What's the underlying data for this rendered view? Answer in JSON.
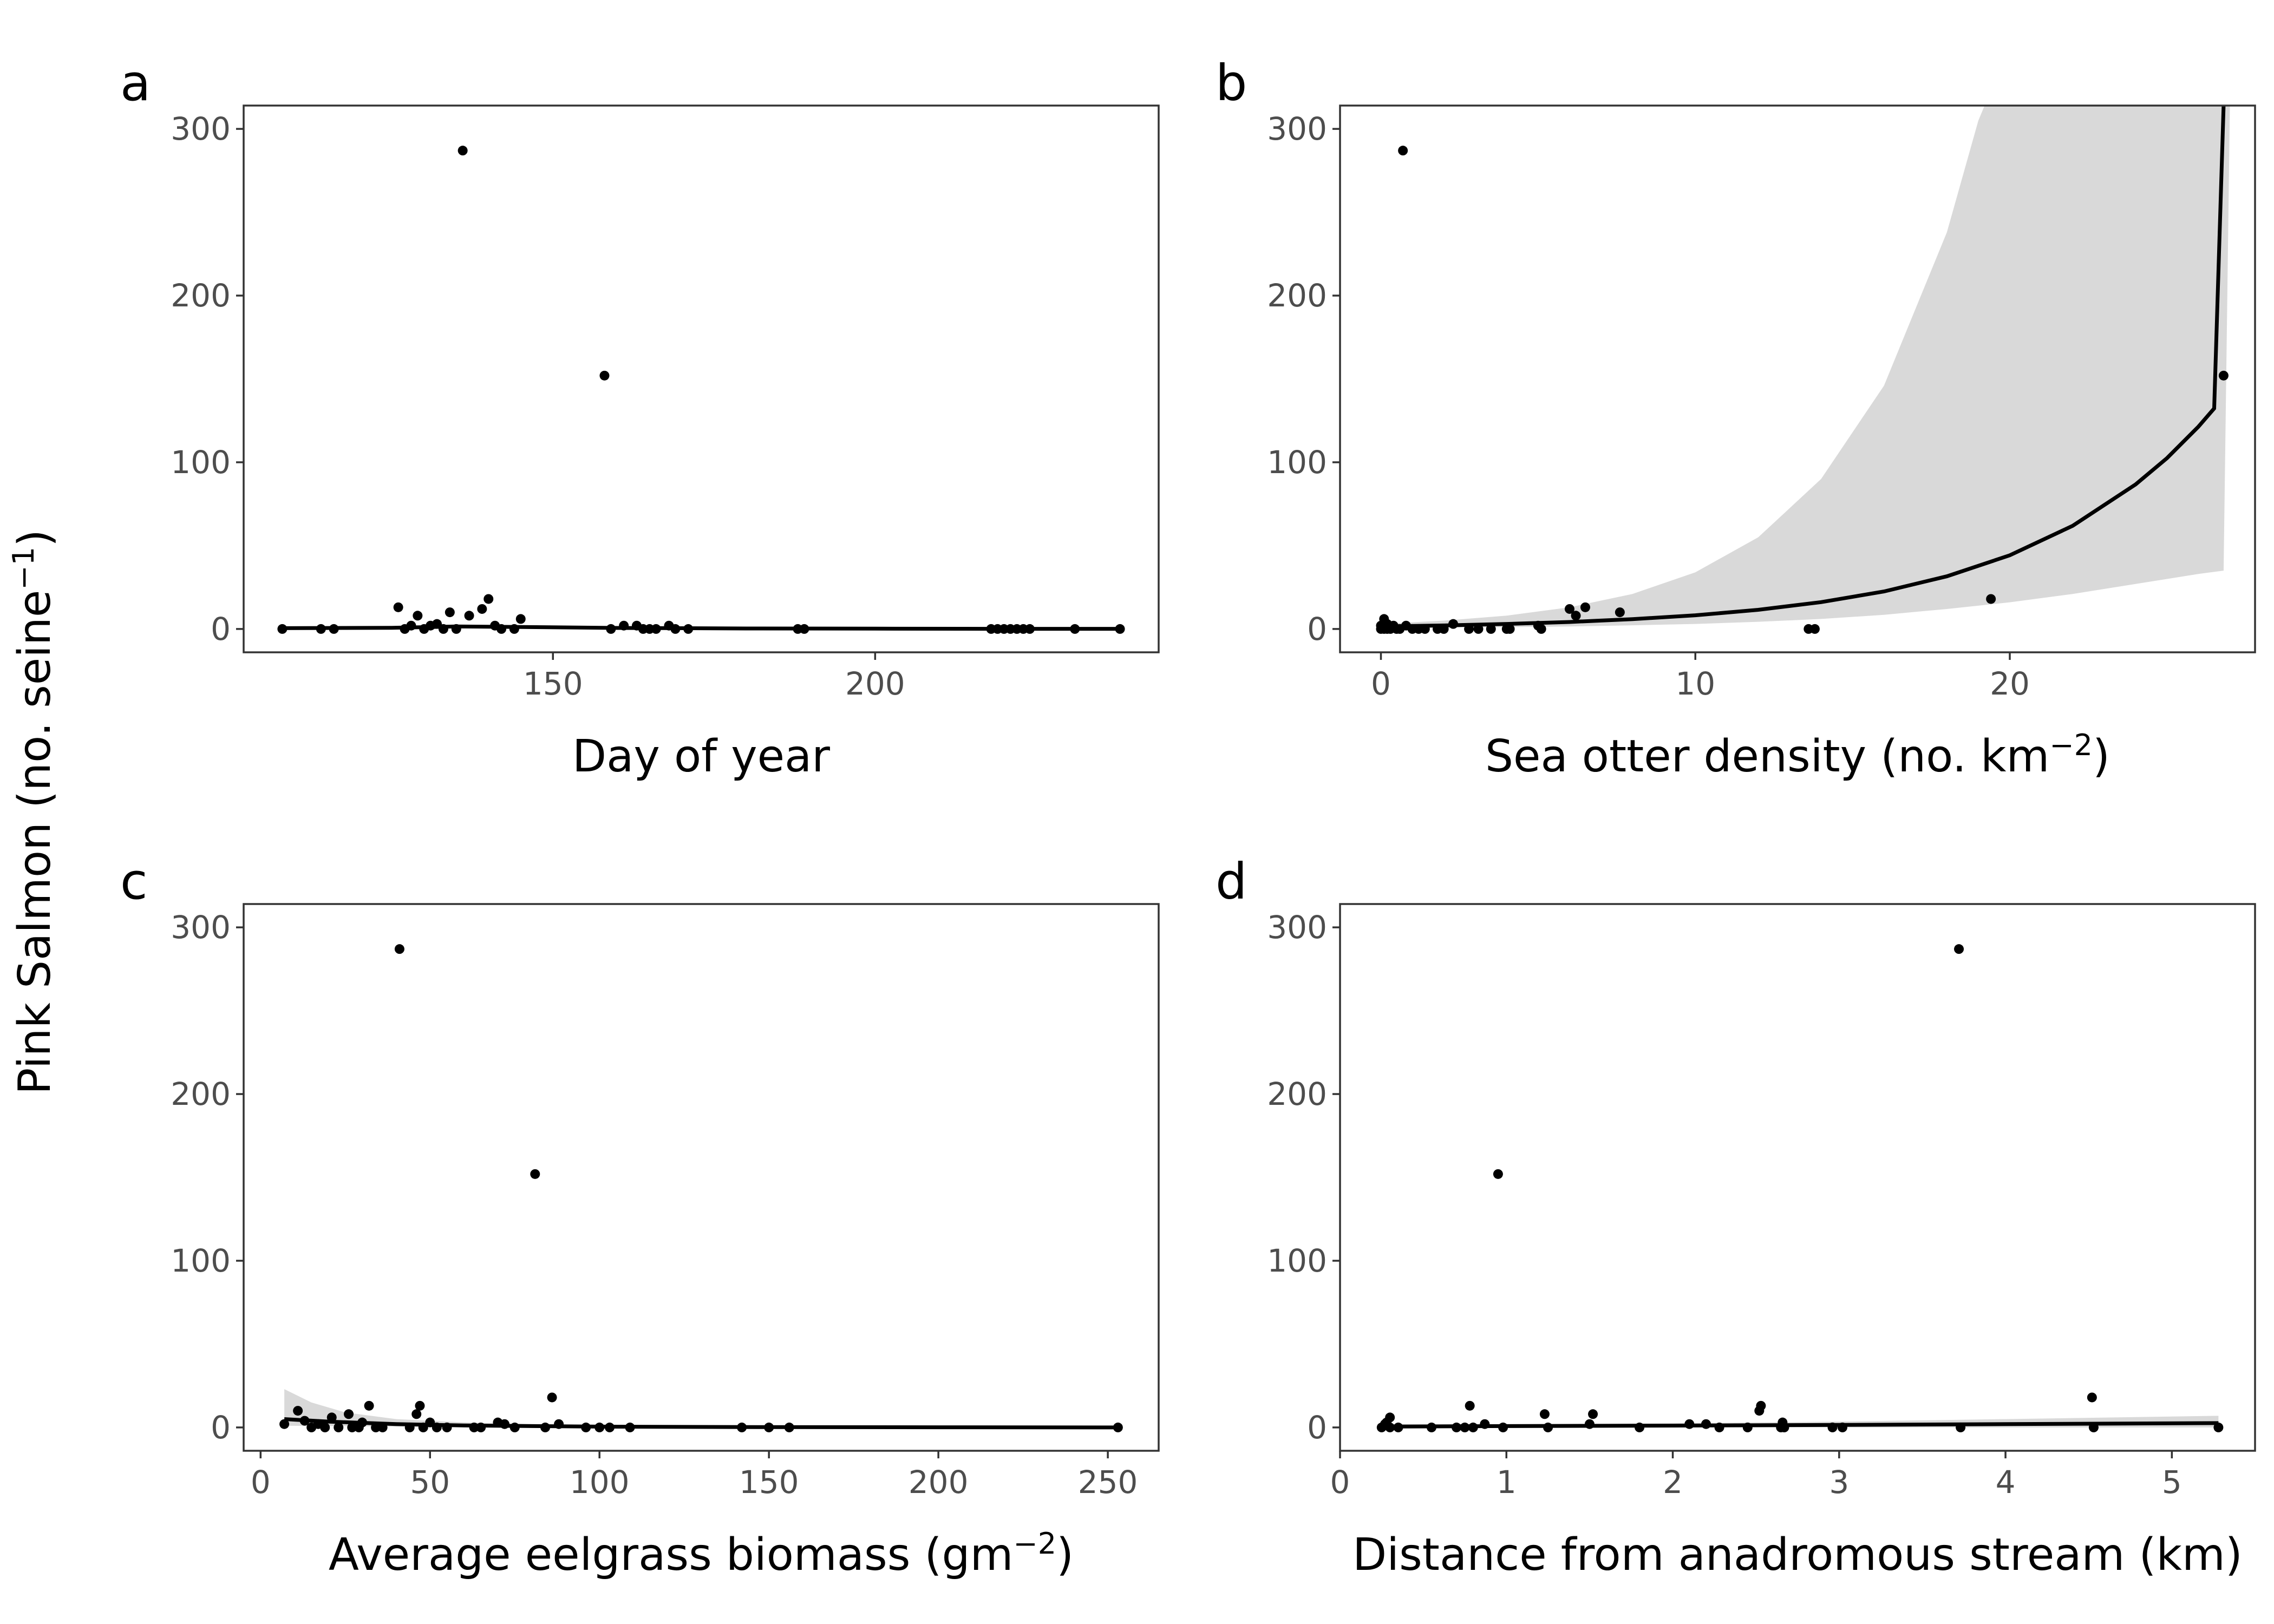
{
  "figure": {
    "y_title_main": "Pink Salmon (no. seine",
    "y_title_sup": "−1",
    "y_title_end": ")"
  },
  "chart_data": [
    {
      "id": "a",
      "panel_label": "a",
      "type": "scatter",
      "xlabel": "Day of year",
      "xlabel_sup": "",
      "xlabel_end": "",
      "xlim": [
        102,
        244
      ],
      "ylim": [
        -14,
        314
      ],
      "xticks": [
        150,
        200
      ],
      "yticks": [
        0,
        100,
        200,
        300
      ],
      "points": [
        [
          108,
          0
        ],
        [
          114,
          0
        ],
        [
          116,
          0
        ],
        [
          126,
          13
        ],
        [
          127,
          0
        ],
        [
          128,
          2
        ],
        [
          129,
          8
        ],
        [
          130,
          0
        ],
        [
          131,
          2
        ],
        [
          132,
          3
        ],
        [
          133,
          0
        ],
        [
          134,
          10
        ],
        [
          135,
          0
        ],
        [
          136,
          287
        ],
        [
          137,
          8
        ],
        [
          139,
          12
        ],
        [
          140,
          18
        ],
        [
          141,
          2
        ],
        [
          142,
          0
        ],
        [
          144,
          0
        ],
        [
          145,
          6
        ],
        [
          158,
          152
        ],
        [
          159,
          0
        ],
        [
          161,
          2
        ],
        [
          163,
          2
        ],
        [
          164,
          0
        ],
        [
          165,
          0
        ],
        [
          166,
          0
        ],
        [
          168,
          2
        ],
        [
          169,
          0
        ],
        [
          171,
          0
        ],
        [
          188,
          0
        ],
        [
          189,
          0
        ],
        [
          218,
          0
        ],
        [
          219,
          0
        ],
        [
          220,
          0
        ],
        [
          221,
          0
        ],
        [
          222,
          0
        ],
        [
          223,
          0
        ],
        [
          224,
          0
        ],
        [
          231,
          0
        ],
        [
          238,
          0
        ]
      ],
      "fit": [
        [
          108,
          0.5
        ],
        [
          125,
          0.7
        ],
        [
          135,
          1.5
        ],
        [
          145,
          1.2
        ],
        [
          160,
          0.6
        ],
        [
          180,
          0.3
        ],
        [
          200,
          0.2
        ],
        [
          220,
          0.1
        ],
        [
          238,
          0.1
        ]
      ],
      "band_upper": [],
      "band_lower": []
    },
    {
      "id": "b",
      "panel_label": "b",
      "type": "scatter",
      "xlabel": "Sea otter density (no. km",
      "xlabel_sup": "−2",
      "xlabel_end": ")",
      "xlim": [
        -1.3,
        27.8
      ],
      "ylim": [
        -14,
        314
      ],
      "xticks": [
        0,
        10,
        20
      ],
      "yticks": [
        0,
        100,
        200,
        300
      ],
      "points": [
        [
          0,
          0
        ],
        [
          0,
          2
        ],
        [
          0.1,
          0
        ],
        [
          0.1,
          6
        ],
        [
          0.2,
          0
        ],
        [
          0.2,
          3
        ],
        [
          0.3,
          0
        ],
        [
          0.4,
          2
        ],
        [
          0.5,
          0
        ],
        [
          0.6,
          0
        ],
        [
          0.7,
          287
        ],
        [
          0.8,
          2
        ],
        [
          1,
          0
        ],
        [
          1.2,
          0
        ],
        [
          1.4,
          0
        ],
        [
          1.8,
          0
        ],
        [
          2,
          0
        ],
        [
          2.3,
          3
        ],
        [
          2.8,
          0
        ],
        [
          3.1,
          0
        ],
        [
          3.5,
          0
        ],
        [
          4,
          0
        ],
        [
          4.1,
          0
        ],
        [
          5,
          2
        ],
        [
          5.1,
          0
        ],
        [
          6,
          12
        ],
        [
          6.2,
          8
        ],
        [
          6.5,
          13
        ],
        [
          7.6,
          10
        ],
        [
          13.6,
          0
        ],
        [
          13.8,
          0
        ],
        [
          19.4,
          18
        ],
        [
          26.8,
          152
        ]
      ],
      "fit": [
        [
          0,
          1.5
        ],
        [
          2,
          2.1
        ],
        [
          4,
          3.0
        ],
        [
          6,
          4.2
        ],
        [
          8,
          5.9
        ],
        [
          10,
          8.2
        ],
        [
          12,
          11.5
        ],
        [
          14,
          16.1
        ],
        [
          16,
          22.5
        ],
        [
          18,
          31.6
        ],
        [
          20,
          44.2
        ],
        [
          22,
          61.9
        ],
        [
          24,
          86.7
        ],
        [
          25,
          102.5
        ],
        [
          26,
          121.4
        ],
        [
          26.5,
          132.3
        ],
        [
          26.8,
          315
        ]
      ],
      "band_upper": [
        [
          0,
          3
        ],
        [
          2,
          5
        ],
        [
          4,
          8
        ],
        [
          6,
          13
        ],
        [
          8,
          21
        ],
        [
          10,
          34
        ],
        [
          12,
          55
        ],
        [
          14,
          90
        ],
        [
          16,
          146
        ],
        [
          18,
          238
        ],
        [
          19,
          305
        ],
        [
          19.2,
          314
        ],
        [
          27,
          314
        ]
      ],
      "band_lower": [
        [
          0,
          0.5
        ],
        [
          2,
          0.8
        ],
        [
          4,
          1.1
        ],
        [
          6,
          1.5
        ],
        [
          8,
          2.2
        ],
        [
          10,
          3.0
        ],
        [
          12,
          4.3
        ],
        [
          14,
          6.0
        ],
        [
          16,
          8.5
        ],
        [
          18,
          12
        ],
        [
          20,
          16
        ],
        [
          22,
          21
        ],
        [
          24,
          27
        ],
        [
          26,
          33
        ],
        [
          26.8,
          35
        ]
      ]
    },
    {
      "id": "c",
      "panel_label": "c",
      "type": "scatter",
      "xlabel": "Average eelgrass biomass (gm",
      "xlabel_sup": "−2",
      "xlabel_end": ")",
      "xlim": [
        -5,
        265
      ],
      "ylim": [
        -14,
        314
      ],
      "xticks": [
        0,
        50,
        100,
        150,
        200,
        250
      ],
      "yticks": [
        0,
        100,
        200,
        300
      ],
      "points": [
        [
          7,
          2
        ],
        [
          11,
          10
        ],
        [
          13,
          4
        ],
        [
          15,
          0
        ],
        [
          17,
          2
        ],
        [
          19,
          0
        ],
        [
          21,
          6
        ],
        [
          23,
          0
        ],
        [
          26,
          8
        ],
        [
          27,
          0
        ],
        [
          29,
          0
        ],
        [
          30,
          3
        ],
        [
          32,
          13
        ],
        [
          34,
          0
        ],
        [
          36,
          0
        ],
        [
          41,
          287
        ],
        [
          44,
          0
        ],
        [
          46,
          8
        ],
        [
          47,
          13
        ],
        [
          48,
          0
        ],
        [
          50,
          3
        ],
        [
          52,
          0
        ],
        [
          55,
          0
        ],
        [
          63,
          0
        ],
        [
          65,
          0
        ],
        [
          70,
          3
        ],
        [
          72,
          2
        ],
        [
          75,
          0
        ],
        [
          81,
          152
        ],
        [
          84,
          0
        ],
        [
          86,
          18
        ],
        [
          88,
          2
        ],
        [
          96,
          0
        ],
        [
          100,
          0
        ],
        [
          103,
          0
        ],
        [
          109,
          0
        ],
        [
          142,
          0
        ],
        [
          150,
          0
        ],
        [
          156,
          0
        ],
        [
          253,
          0
        ]
      ],
      "fit": [
        [
          7,
          5
        ],
        [
          20,
          3.5
        ],
        [
          40,
          2
        ],
        [
          60,
          1.2
        ],
        [
          80,
          0.8
        ],
        [
          100,
          0.5
        ],
        [
          150,
          0.2
        ],
        [
          200,
          0.1
        ],
        [
          253,
          0
        ]
      ],
      "band_upper": [
        [
          7,
          23
        ],
        [
          15,
          15
        ],
        [
          25,
          9
        ],
        [
          40,
          5
        ],
        [
          60,
          3
        ],
        [
          80,
          2
        ],
        [
          100,
          1.5
        ],
        [
          150,
          1
        ],
        [
          253,
          1
        ]
      ],
      "band_lower": [
        [
          7,
          1
        ],
        [
          20,
          0.8
        ],
        [
          40,
          0.5
        ],
        [
          60,
          0.3
        ],
        [
          100,
          0.2
        ],
        [
          253,
          0
        ]
      ]
    },
    {
      "id": "d",
      "panel_label": "d",
      "type": "scatter",
      "xlabel": "Distance from anadromous stream (km)",
      "xlabel_sup": "",
      "xlabel_end": "",
      "xlim": [
        0,
        5.5
      ],
      "ylim": [
        -14,
        314
      ],
      "xticks": [
        0,
        1,
        2,
        3,
        4,
        5
      ],
      "yticks": [
        0,
        100,
        200,
        300
      ],
      "points": [
        [
          0.25,
          0
        ],
        [
          0.27,
          2
        ],
        [
          0.28,
          3
        ],
        [
          0.3,
          0
        ],
        [
          0.3,
          6
        ],
        [
          0.35,
          0
        ],
        [
          0.55,
          0
        ],
        [
          0.7,
          0
        ],
        [
          0.75,
          0
        ],
        [
          0.78,
          13
        ],
        [
          0.8,
          0
        ],
        [
          0.87,
          2
        ],
        [
          0.95,
          152
        ],
        [
          0.98,
          0
        ],
        [
          1.23,
          8
        ],
        [
          1.25,
          0
        ],
        [
          1.5,
          2
        ],
        [
          1.52,
          8
        ],
        [
          1.8,
          0
        ],
        [
          2.1,
          2
        ],
        [
          2.2,
          2
        ],
        [
          2.28,
          0
        ],
        [
          2.45,
          0
        ],
        [
          2.52,
          10
        ],
        [
          2.53,
          13
        ],
        [
          2.65,
          0
        ],
        [
          2.66,
          3
        ],
        [
          2.67,
          0
        ],
        [
          2.96,
          0
        ],
        [
          3.02,
          0
        ],
        [
          3.72,
          287
        ],
        [
          3.73,
          0
        ],
        [
          4.52,
          18
        ],
        [
          4.53,
          0
        ],
        [
          5.28,
          0
        ]
      ],
      "fit": [
        [
          0.25,
          0.5
        ],
        [
          1,
          0.8
        ],
        [
          2,
          1.1
        ],
        [
          3,
          1.5
        ],
        [
          4,
          2
        ],
        [
          5.28,
          2.6
        ]
      ],
      "band_upper": [
        [
          0.25,
          2
        ],
        [
          1,
          2
        ],
        [
          2,
          2.5
        ],
        [
          3,
          3.5
        ],
        [
          4,
          5
        ],
        [
          5.28,
          7
        ]
      ],
      "band_lower": [
        [
          0.25,
          0
        ],
        [
          1,
          0
        ],
        [
          2,
          0
        ],
        [
          3,
          0
        ],
        [
          4,
          0
        ],
        [
          5.28,
          0
        ]
      ]
    }
  ]
}
